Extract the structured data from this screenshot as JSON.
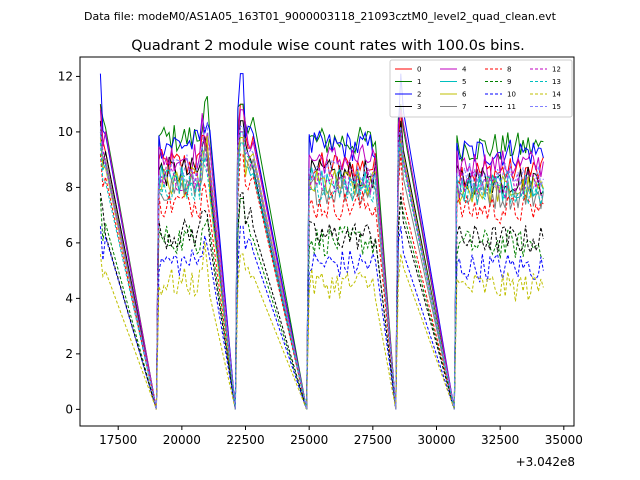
{
  "chart_data": {
    "type": "line",
    "suptitle": "Data file: modeM0/AS1A05_163T01_9000003118_21093cztM0_level2_quad_clean.evt",
    "title": "Quadrant 2 module wise count rates with 100.0s bins.",
    "xlabel": "",
    "ylabel": "",
    "x_offset_label": "+3.042e8",
    "xlim": [
      16000,
      35400
    ],
    "ylim": [
      -0.6,
      12.7
    ],
    "xticks": [
      17500,
      20000,
      22500,
      25000,
      27500,
      30000,
      32500,
      35000
    ],
    "xtick_labels": [
      "17500",
      "20000",
      "22500",
      "25000",
      "27500",
      "30000",
      "32500",
      "35000"
    ],
    "yticks": [
      0,
      2,
      4,
      6,
      8,
      10,
      12
    ],
    "ytick_labels": [
      "0",
      "2",
      "4",
      "6",
      "8",
      "10",
      "12"
    ],
    "legend_location": "upper-right",
    "segments": [
      [
        16800,
        17000
      ],
      [
        19100,
        21100
      ],
      [
        22200,
        22800
      ],
      [
        25000,
        27600
      ],
      [
        28500,
        28700
      ],
      [
        30800,
        34200
      ]
    ],
    "spikes": [
      [
        22250,
        22400
      ],
      [
        28600,
        28650
      ]
    ],
    "x": [
      16800,
      16900,
      17000,
      19000,
      19100,
      19200,
      19300,
      19400,
      19500,
      19600,
      19700,
      19800,
      19900,
      20000,
      20100,
      20200,
      20300,
      20400,
      20500,
      20600,
      20700,
      20800,
      20900,
      21000,
      21100,
      22100,
      22200,
      22300,
      22400,
      22500,
      22600,
      22700,
      22800,
      24900,
      25000,
      25100,
      25200,
      25300,
      25400,
      25500,
      25600,
      25700,
      25800,
      25900,
      26000,
      26100,
      26200,
      26300,
      26400,
      26500,
      26600,
      26700,
      26800,
      26900,
      27000,
      27100,
      27200,
      27300,
      27400,
      27500,
      27600,
      28400,
      28500,
      28600,
      28700,
      30700,
      30800,
      30900,
      31000,
      31100,
      31200,
      31300,
      31400,
      31500,
      31600,
      31700,
      31800,
      31900,
      32000,
      32100,
      32200,
      32300,
      32400,
      32500,
      32600,
      32700,
      32800,
      32900,
      33000,
      33100,
      33200,
      33300,
      33400,
      33500,
      33600,
      33700,
      33800,
      33900,
      34000,
      34100,
      34200
    ],
    "series": [
      {
        "name": "0",
        "color": "#ff0000",
        "dash": "solid",
        "level": 9.5,
        "spike": 11.0
      },
      {
        "name": "1",
        "color": "#008000",
        "dash": "solid",
        "level": 10.5,
        "spike": 11.0
      },
      {
        "name": "2",
        "color": "#0000ff",
        "dash": "solid",
        "level": 10.3,
        "spike": 12.1
      },
      {
        "name": "3",
        "color": "#000000",
        "dash": "solid",
        "level": 9.2,
        "spike": 10.4
      },
      {
        "name": "4",
        "color": "#bf00bf",
        "dash": "solid",
        "level": 9.8,
        "spike": 10.8
      },
      {
        "name": "5",
        "color": "#00bfbf",
        "dash": "solid",
        "level": 8.9,
        "spike": 10.0
      },
      {
        "name": "6",
        "color": "#bfbf00",
        "dash": "solid",
        "level": 8.8,
        "spike": 9.8
      },
      {
        "name": "7",
        "color": "#808080",
        "dash": "solid",
        "level": 8.6,
        "spike": 9.6
      },
      {
        "name": "8",
        "color": "#ff0000",
        "dash": "dashed",
        "level": 8.0,
        "spike": 9.2
      },
      {
        "name": "9",
        "color": "#008000",
        "dash": "dashed",
        "level": 6.6,
        "spike": 7.6
      },
      {
        "name": "10",
        "color": "#0000ff",
        "dash": "dashed",
        "level": 5.7,
        "spike": 6.6
      },
      {
        "name": "11",
        "color": "#000000",
        "dash": "dashed",
        "level": 6.8,
        "spike": 7.8
      },
      {
        "name": "12",
        "color": "#bf00bf",
        "dash": "dashed",
        "level": 9.0,
        "spike": 10.0
      },
      {
        "name": "13",
        "color": "#00bfbf",
        "dash": "dashed",
        "level": 8.7,
        "spike": 9.6
      },
      {
        "name": "14",
        "color": "#bfbf00",
        "dash": "dashed",
        "level": 4.9,
        "spike": 5.6
      },
      {
        "name": "15",
        "color": "#8080ff",
        "dash": "dashed",
        "level": 9.3,
        "spike": 10.2
      }
    ]
  }
}
